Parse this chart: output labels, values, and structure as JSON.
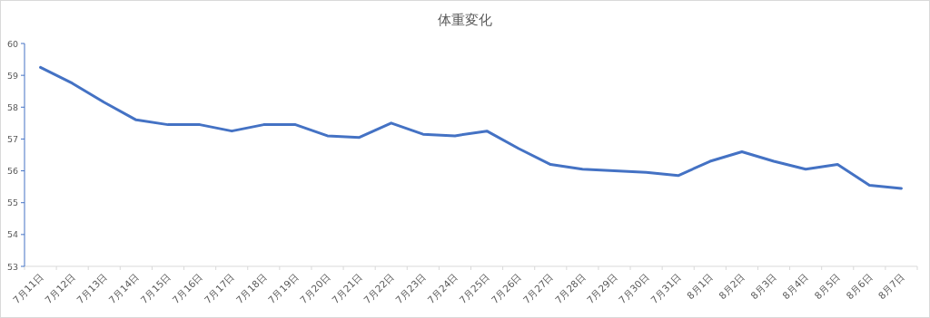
{
  "chart_data": {
    "type": "line",
    "title": "体重変化",
    "categories": [
      "7月11日",
      "7月12日",
      "7月13日",
      "7月14日",
      "7月15日",
      "7月16日",
      "7月17日",
      "7月18日",
      "7月19日",
      "7月20日",
      "7月21日",
      "7月22日",
      "7月23日",
      "7月24日",
      "7月25日",
      "7月26日",
      "7月27日",
      "7月28日",
      "7月29日",
      "7月30日",
      "7月31日",
      "8月1日",
      "8月2日",
      "8月3日",
      "8月4日",
      "8月5日",
      "8月6日",
      "8月7日"
    ],
    "series": [
      {
        "color": "#4472c4",
        "values": [
          59.25,
          58.75,
          58.15,
          57.6,
          57.45,
          57.45,
          57.25,
          57.45,
          57.45,
          57.1,
          57.05,
          57.5,
          57.15,
          57.1,
          57.25,
          56.7,
          56.2,
          56.05,
          56.0,
          55.95,
          55.85,
          56.3,
          56.6,
          56.3,
          56.05,
          56.2,
          55.55,
          55.45
        ]
      }
    ],
    "ylim": [
      53,
      60
    ],
    "yticks": [
      53,
      54,
      55,
      56,
      57,
      58,
      59,
      60
    ],
    "grid": false,
    "marker": "none",
    "line_style": "solid"
  }
}
